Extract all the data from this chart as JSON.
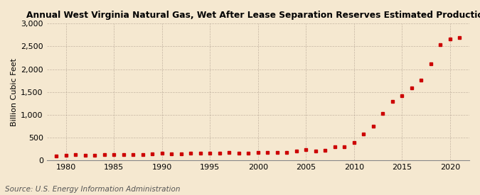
{
  "title": "Annual West Virginia Natural Gas, Wet After Lease Separation Reserves Estimated Production",
  "ylabel": "Billion Cubic Feet",
  "source": "Source: U.S. Energy Information Administration",
  "background_color": "#f5e8d0",
  "plot_bg_color": "#f5e8d0",
  "marker_color": "#cc0000",
  "years": [
    1979,
    1980,
    1981,
    1982,
    1983,
    1984,
    1985,
    1986,
    1987,
    1988,
    1989,
    1990,
    1991,
    1992,
    1993,
    1994,
    1995,
    1996,
    1997,
    1998,
    1999,
    2000,
    2001,
    2002,
    2003,
    2004,
    2005,
    2006,
    2007,
    2008,
    2009,
    2010,
    2011,
    2012,
    2013,
    2014,
    2015,
    2016,
    2017,
    2018,
    2019,
    2020,
    2021
  ],
  "values": [
    88,
    115,
    120,
    108,
    110,
    125,
    130,
    118,
    125,
    130,
    140,
    155,
    145,
    140,
    148,
    150,
    155,
    160,
    165,
    160,
    155,
    165,
    170,
    165,
    175,
    200,
    225,
    195,
    220,
    295,
    295,
    380,
    575,
    750,
    1020,
    1295,
    1410,
    1580,
    1755,
    2120,
    2540,
    2660,
    2700
  ],
  "xlim": [
    1978,
    2022
  ],
  "ylim": [
    0,
    3000
  ],
  "yticks": [
    0,
    500,
    1000,
    1500,
    2000,
    2500,
    3000
  ],
  "ytick_labels": [
    "0",
    "500",
    "1,000",
    "1,500",
    "2,000",
    "2,500",
    "3,000"
  ],
  "xticks": [
    1980,
    1985,
    1990,
    1995,
    2000,
    2005,
    2010,
    2015,
    2020
  ],
  "title_fontsize": 8.8,
  "ylabel_fontsize": 8,
  "tick_fontsize": 8,
  "source_fontsize": 7.5
}
